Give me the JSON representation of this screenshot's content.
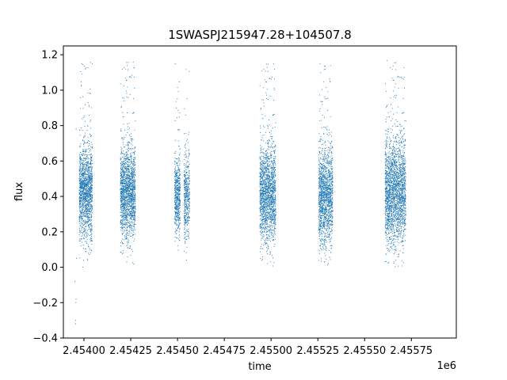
{
  "chart_data": {
    "type": "scatter",
    "title": "1SWASPJ215947.28+104507.8",
    "xlabel": "time",
    "ylabel": "flux",
    "x_offset_label": "1e6",
    "xlim": [
      2453890,
      2455990
    ],
    "ylim": [
      -0.4,
      1.25
    ],
    "x_ticks": [
      2454000,
      2454250,
      2454500,
      2454750,
      2455000,
      2455250,
      2455500,
      2455750
    ],
    "x_tick_labels": [
      "2.45400",
      "2.45425",
      "2.45450",
      "2.45475",
      "2.45500",
      "2.45525",
      "2.45550",
      "2.45575"
    ],
    "y_ticks": [
      -0.4,
      -0.2,
      0.0,
      0.2,
      0.4,
      0.6,
      0.8,
      1.0,
      1.2
    ],
    "y_tick_labels": [
      "−0.4",
      "−0.2",
      "0.0",
      "0.2",
      "0.4",
      "0.6",
      "0.8",
      "1.0",
      "1.2"
    ],
    "grid": false,
    "marker_color": "#1f77b4",
    "observing_seasons": [
      {
        "x_start": 2453975,
        "x_end": 2454045,
        "y_mean": 0.42,
        "y_spread": 0.13,
        "n": 1500
      },
      {
        "x_start": 2454195,
        "x_end": 2454275,
        "y_mean": 0.42,
        "y_spread": 0.13,
        "n": 1700
      },
      {
        "x_start": 2454485,
        "x_end": 2454515,
        "y_mean": 0.4,
        "y_spread": 0.11,
        "n": 550
      },
      {
        "x_start": 2454535,
        "x_end": 2454565,
        "y_mean": 0.4,
        "y_spread": 0.12,
        "n": 450
      },
      {
        "x_start": 2454940,
        "x_end": 2455025,
        "y_mean": 0.41,
        "y_spread": 0.14,
        "n": 1700
      },
      {
        "x_start": 2455255,
        "x_end": 2455330,
        "y_mean": 0.4,
        "y_spread": 0.14,
        "n": 1500
      },
      {
        "x_start": 2455610,
        "x_end": 2455720,
        "y_mean": 0.42,
        "y_spread": 0.15,
        "n": 2200
      }
    ],
    "outliers": [
      {
        "x": 2453955,
        "y": -0.32
      },
      {
        "x": 2453955,
        "y": -0.3
      },
      {
        "x": 2453957,
        "y": -0.2
      },
      {
        "x": 2453958,
        "y": -0.18
      },
      {
        "x": 2453952,
        "y": -0.08
      },
      {
        "x": 2453960,
        "y": 0.05
      },
      {
        "x": 2453958,
        "y": 0.78
      }
    ]
  }
}
